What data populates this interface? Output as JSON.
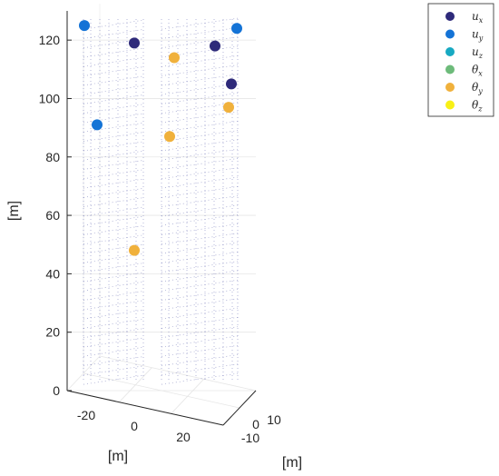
{
  "chart_data": {
    "type": "scatter",
    "projection": "3d",
    "axes": {
      "x": {
        "label": "[m]",
        "ticks": [
          -20,
          0,
          20
        ]
      },
      "y": {
        "label": "[m]",
        "ticks": [
          -10,
          0,
          10
        ]
      },
      "z": {
        "label": "[m]",
        "ticks": [
          0,
          20,
          40,
          60,
          80,
          100,
          120
        ],
        "range": [
          0,
          130
        ]
      }
    },
    "grid": true,
    "legend": {
      "placement": "top-right",
      "entries": [
        {
          "key": "ux",
          "label": "u",
          "sub": "x",
          "color": "#2e2a7a"
        },
        {
          "key": "uy",
          "label": "u",
          "sub": "y",
          "color": "#1473d6"
        },
        {
          "key": "uz",
          "label": "u",
          "sub": "z",
          "color": "#17a9c2"
        },
        {
          "key": "tx",
          "label": "θ",
          "sub": "x",
          "color": "#6dbb7a"
        },
        {
          "key": "ty",
          "label": "θ",
          "sub": "y",
          "color": "#f0b13c"
        },
        {
          "key": "tz",
          "label": "θ",
          "sub": "z",
          "color": "#f8f016"
        }
      ]
    },
    "points": [
      {
        "series": "uy",
        "z": 125,
        "screen_column": "left-back"
      },
      {
        "series": "uy",
        "z": 91,
        "screen_column": "left-back"
      },
      {
        "series": "ux",
        "z": 119,
        "screen_column": "left-front"
      },
      {
        "series": "ty",
        "z": 48,
        "screen_column": "left-front"
      },
      {
        "series": "ty",
        "z": 114,
        "screen_column": "middle"
      },
      {
        "series": "ty",
        "z": 87,
        "screen_column": "middle"
      },
      {
        "series": "ux",
        "z": 118,
        "screen_column": "right-back"
      },
      {
        "series": "uy",
        "z": 124,
        "screen_column": "right-front"
      },
      {
        "series": "ux",
        "z": 105,
        "screen_column": "right-front"
      },
      {
        "series": "ty",
        "z": 97,
        "screen_column": "right-front"
      }
    ]
  }
}
